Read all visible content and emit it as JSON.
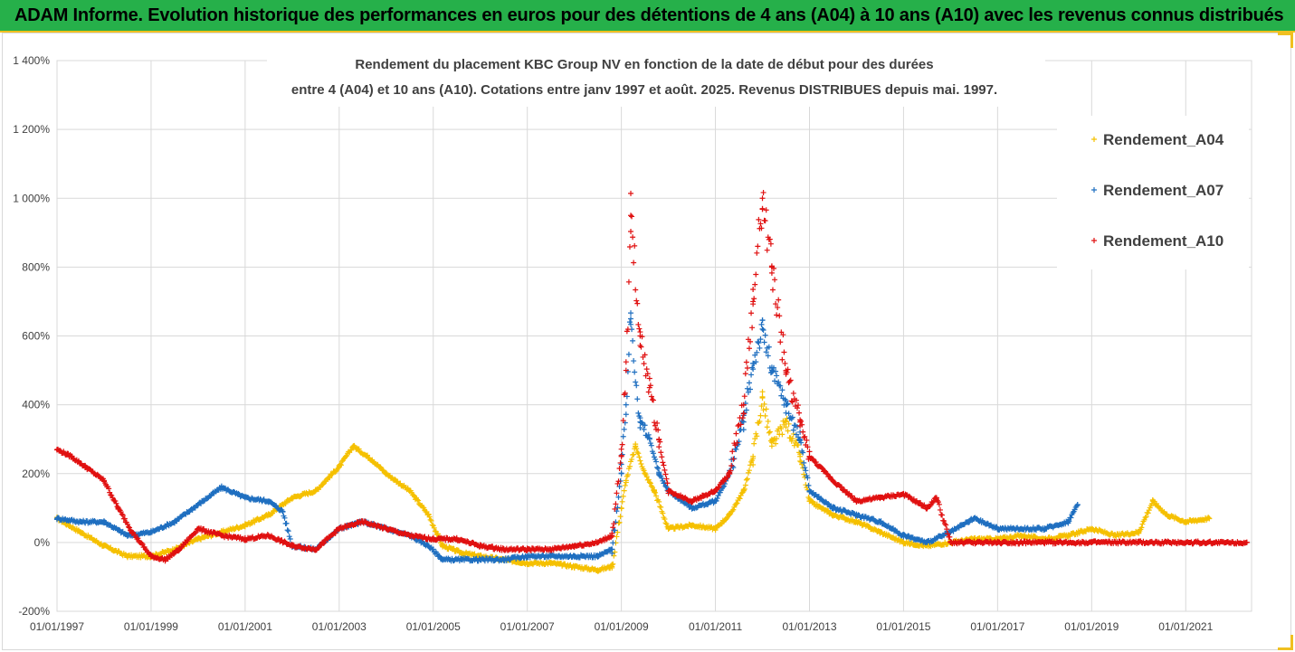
{
  "banner": {
    "text": "ADAM Informe. Evolution historique des performances en euros pour des détentions de 4 ans (A04) à 10 ans (A10) avec les revenus connus distribués"
  },
  "colors": {
    "banner_bg": "#26b04a",
    "accent": "#f0c020",
    "series_a04": "#f5c000",
    "series_a07": "#1f6fc0",
    "series_a10": "#e01010"
  },
  "chart_data": {
    "type": "scatter",
    "title_lines": [
      "Rendement du placement KBC Group NV en fonction de la date de début pour des durées",
      "entre 4 (A04) et 10 ans (A10). Cotations entre janv 1997 et août. 2025. Revenus DISTRIBUES depuis mai. 1997."
    ],
    "x_tick_labels": [
      "01/01/1997",
      "01/01/1999",
      "01/01/2001",
      "01/01/2003",
      "01/01/2005",
      "01/01/2007",
      "01/01/2009",
      "01/01/2011",
      "01/01/2013",
      "01/01/2015",
      "01/01/2017",
      "01/01/2019",
      "01/01/2021"
    ],
    "y_tick_labels": [
      "1 400%",
      "1 200%",
      "1 000%",
      "800%",
      "600%",
      "400%",
      "200%",
      "0%",
      "-200%"
    ],
    "y_tick_values": [
      1400,
      1200,
      1000,
      800,
      600,
      400,
      200,
      0,
      -200
    ],
    "xlim": [
      1997.0,
      2022.4
    ],
    "ylim": [
      -200,
      1400
    ],
    "grid": true,
    "legend_position": "right",
    "series": [
      {
        "name": "Rendement_A04",
        "color": "#f5c000",
        "end": 2021.5,
        "x": [
          1997.0,
          1997.5,
          1998.0,
          1998.5,
          1999.0,
          1999.5,
          2000.0,
          2000.5,
          2001.0,
          2001.5,
          2002.0,
          2002.5,
          2003.0,
          2003.3,
          2003.7,
          2004.0,
          2004.5,
          2004.9,
          2005.2,
          2005.6,
          2006.0,
          2006.5,
          2007.0,
          2007.5,
          2008.0,
          2008.5,
          2008.8,
          2009.0,
          2009.1,
          2009.3,
          2009.5,
          2009.7,
          2010.0,
          2010.5,
          2011.0,
          2011.3,
          2011.6,
          2011.8,
          2012.0,
          2012.2,
          2012.5,
          2012.8,
          2013.0,
          2013.5,
          2014.0,
          2014.5,
          2015.0,
          2015.5,
          2016.0,
          2016.5,
          2017.0,
          2017.5,
          2018.0,
          2018.5,
          2019.0,
          2019.5,
          2020.0,
          2020.3,
          2020.6,
          2021.0,
          2021.5
        ],
        "y": [
          70,
          30,
          -10,
          -40,
          -40,
          -20,
          10,
          30,
          50,
          80,
          130,
          150,
          220,
          280,
          240,
          200,
          150,
          80,
          -10,
          -30,
          -40,
          -50,
          -60,
          -60,
          -70,
          -80,
          -70,
          100,
          180,
          280,
          200,
          150,
          40,
          50,
          40,
          80,
          150,
          250,
          420,
          280,
          350,
          250,
          120,
          80,
          60,
          30,
          0,
          -10,
          0,
          10,
          10,
          20,
          10,
          20,
          40,
          20,
          30,
          120,
          80,
          60,
          70
        ]
      },
      {
        "name": "Rendement_A07",
        "color": "#1f6fc0",
        "end": 2018.7,
        "x": [
          1997.0,
          1997.5,
          1998.0,
          1998.5,
          1999.0,
          1999.5,
          2000.0,
          2000.5,
          2001.0,
          2001.5,
          2001.8,
          2002.0,
          2002.5,
          2003.0,
          2003.5,
          2004.0,
          2004.5,
          2004.9,
          2005.2,
          2005.6,
          2006.0,
          2006.5,
          2007.0,
          2007.5,
          2008.0,
          2008.5,
          2008.8,
          2009.0,
          2009.1,
          2009.2,
          2009.4,
          2009.6,
          2009.8,
          2010.0,
          2010.5,
          2011.0,
          2011.3,
          2011.6,
          2011.8,
          2012.0,
          2012.2,
          2012.5,
          2012.8,
          2013.0,
          2013.5,
          2014.0,
          2014.5,
          2015.0,
          2015.5,
          2016.0,
          2016.5,
          2017.0,
          2017.5,
          2018.0,
          2018.5,
          2018.7
        ],
        "y": [
          70,
          60,
          60,
          20,
          30,
          60,
          110,
          160,
          130,
          120,
          90,
          -10,
          -20,
          40,
          60,
          40,
          20,
          -10,
          -50,
          -50,
          -50,
          -50,
          -40,
          -40,
          -40,
          -40,
          -20,
          200,
          400,
          650,
          350,
          300,
          200,
          150,
          100,
          120,
          200,
          350,
          520,
          620,
          500,
          400,
          300,
          150,
          100,
          80,
          60,
          20,
          0,
          30,
          70,
          40,
          40,
          40,
          60,
          110
        ]
      },
      {
        "name": "Rendement_A10",
        "color": "#e01010",
        "end": 2022.3,
        "x": [
          1997.0,
          1997.3,
          1997.6,
          1998.0,
          1998.3,
          1998.6,
          1999.0,
          1999.3,
          1999.6,
          2000.0,
          2000.5,
          2001.0,
          2001.5,
          2002.0,
          2002.5,
          2003.0,
          2003.5,
          2004.0,
          2004.5,
          2005.0,
          2005.5,
          2006.0,
          2006.5,
          2007.0,
          2007.5,
          2008.0,
          2008.5,
          2008.8,
          2009.0,
          2009.1,
          2009.2,
          2009.4,
          2009.6,
          2009.8,
          2010.0,
          2010.5,
          2011.0,
          2011.3,
          2011.6,
          2011.8,
          2012.0,
          2012.2,
          2012.5,
          2012.8,
          2013.0,
          2013.5,
          2014.0,
          2014.5,
          2015.0,
          2015.5,
          2015.7,
          2016.0,
          2017.0,
          2018.0,
          2019.0,
          2020.0,
          2021.0,
          2022.3
        ],
        "y": [
          270,
          250,
          220,
          180,
          100,
          30,
          -40,
          -50,
          -20,
          40,
          20,
          10,
          20,
          -10,
          -20,
          40,
          60,
          40,
          20,
          10,
          10,
          -10,
          -20,
          -20,
          -20,
          -10,
          0,
          20,
          250,
          500,
          950,
          600,
          450,
          300,
          150,
          120,
          150,
          200,
          400,
          700,
          1000,
          800,
          500,
          350,
          250,
          180,
          120,
          130,
          140,
          100,
          130,
          0,
          0,
          0,
          0,
          0,
          0,
          0
        ]
      }
    ]
  }
}
